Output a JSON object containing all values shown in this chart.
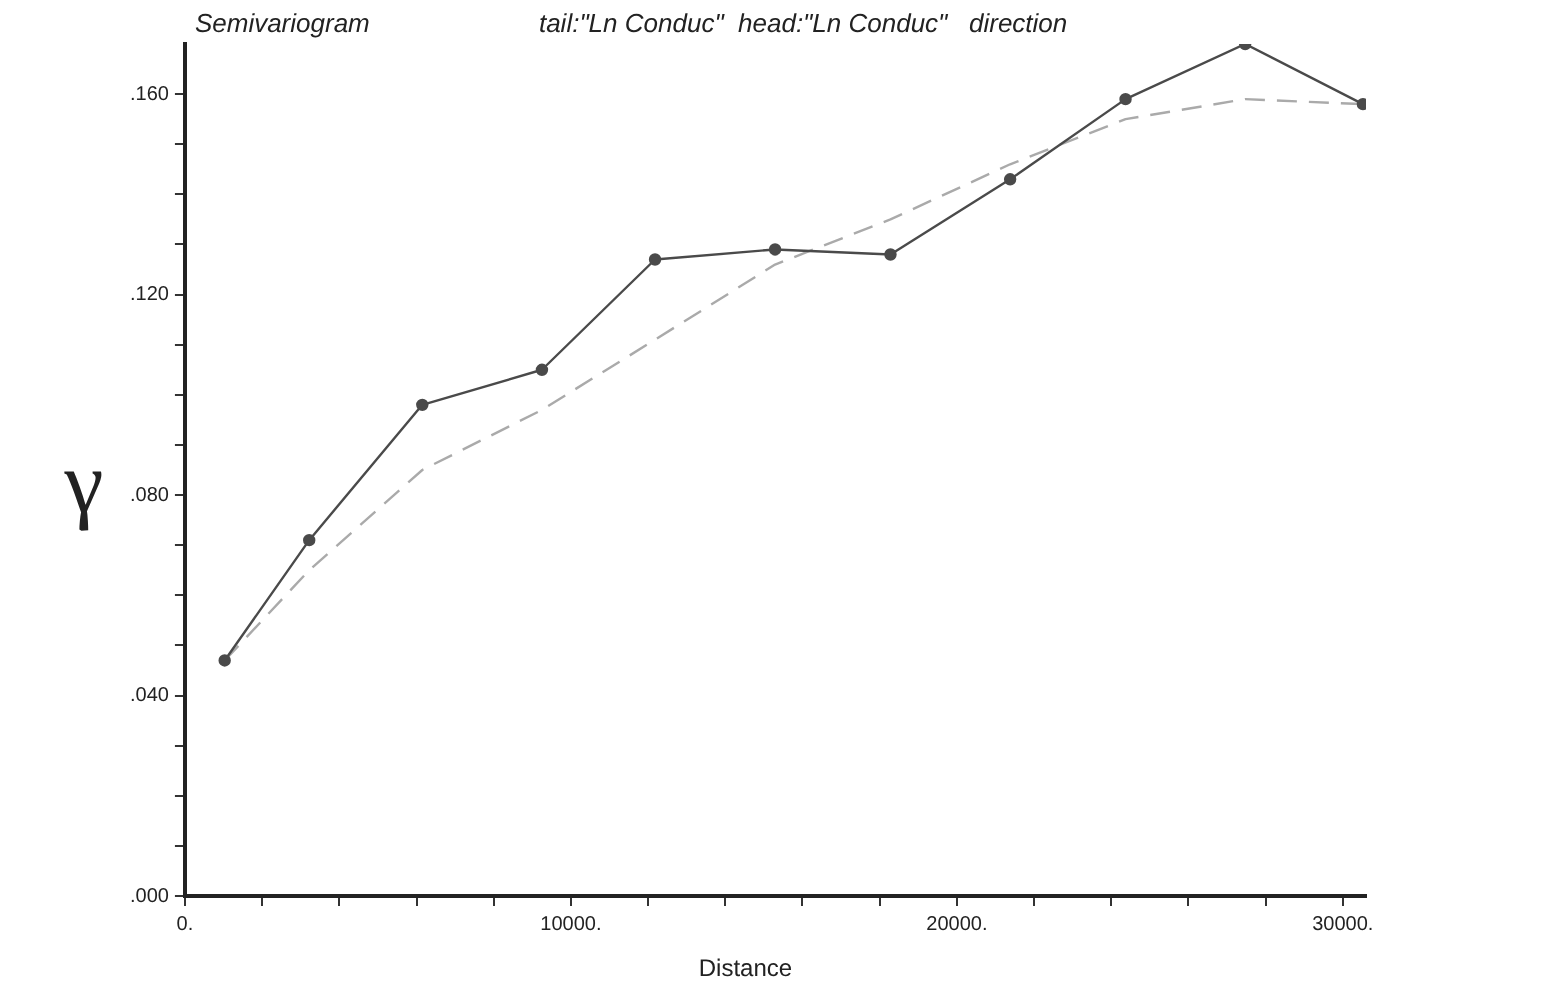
{
  "chart_data": {
    "type": "line",
    "title": "Semivariogram",
    "subtitle": "tail:\"Ln Conduc\"  head:\"Ln Conduc\"   direction",
    "xlabel": "Distance",
    "ylabel": "γ",
    "xlim": [
      0,
      30600
    ],
    "ylim": [
      0,
      0.17
    ],
    "xticks": [
      {
        "value": 0,
        "label": "0."
      },
      {
        "value": 2000,
        "label": null
      },
      {
        "value": 4000,
        "label": null
      },
      {
        "value": 6000,
        "label": null
      },
      {
        "value": 8000,
        "label": null
      },
      {
        "value": 10000,
        "label": "10000."
      },
      {
        "value": 12000,
        "label": null
      },
      {
        "value": 14000,
        "label": null
      },
      {
        "value": 16000,
        "label": null
      },
      {
        "value": 18000,
        "label": null
      },
      {
        "value": 20000,
        "label": "20000."
      },
      {
        "value": 22000,
        "label": null
      },
      {
        "value": 24000,
        "label": null
      },
      {
        "value": 26000,
        "label": null
      },
      {
        "value": 28000,
        "label": null
      },
      {
        "value": 30000,
        "label": "30000."
      }
    ],
    "yticks": [
      {
        "value": 0,
        "label": ".000"
      },
      {
        "value": 0.01,
        "label": null
      },
      {
        "value": 0.02,
        "label": null
      },
      {
        "value": 0.03,
        "label": null
      },
      {
        "value": 0.04,
        "label": ".040"
      },
      {
        "value": 0.05,
        "label": null
      },
      {
        "value": 0.06,
        "label": null
      },
      {
        "value": 0.07,
        "label": null
      },
      {
        "value": 0.08,
        "label": ".080"
      },
      {
        "value": 0.09,
        "label": null
      },
      {
        "value": 0.1,
        "label": null
      },
      {
        "value": 0.11,
        "label": null
      },
      {
        "value": 0.12,
        "label": ".120"
      },
      {
        "value": 0.13,
        "label": null
      },
      {
        "value": 0.14,
        "label": null
      },
      {
        "value": 0.15,
        "label": null
      },
      {
        "value": 0.16,
        "label": ".160"
      }
    ],
    "grid": false,
    "legend": false,
    "series": [
      {
        "color": "#4a4a4a",
        "marker": "circle",
        "line_style": "solid",
        "x": [
          1030,
          3220,
          6150,
          9250,
          12180,
          15290,
          18280,
          21380,
          24370,
          27470,
          30520
        ],
        "values": [
          0.047,
          0.071,
          0.098,
          0.105,
          0.127,
          0.129,
          0.128,
          0.143,
          0.159,
          0.17,
          0.158
        ]
      },
      {
        "color": "#aaaaaa",
        "marker": "none",
        "line_style": "dashed",
        "x": [
          1030,
          3220,
          6150,
          9250,
          12180,
          15290,
          18280,
          21380,
          24370,
          27470,
          30520
        ],
        "values": [
          0.047,
          0.065,
          0.085,
          0.097,
          0.111,
          0.126,
          0.135,
          0.146,
          0.155,
          0.159,
          0.158
        ]
      }
    ]
  }
}
